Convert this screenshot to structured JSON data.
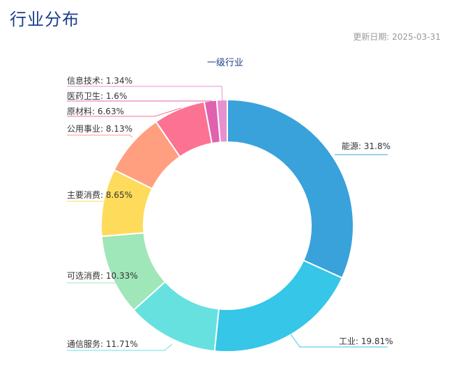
{
  "page": {
    "title": "行业分布",
    "update_label": "更新日期:",
    "update_date": "2025-03-31"
  },
  "chart_data": {
    "type": "pie",
    "variant": "donut",
    "title": "一级行业",
    "categories": [
      "能源",
      "工业",
      "通信服务",
      "可选消费",
      "主要消费",
      "公用事业",
      "原材料",
      "医药卫生",
      "信息技术"
    ],
    "values": [
      31.8,
      19.81,
      11.71,
      10.33,
      8.65,
      8.13,
      6.63,
      1.6,
      1.34
    ],
    "labels": [
      "能源: 31.8%",
      "工业: 19.81%",
      "通信服务: 11.71%",
      "可选消费: 10.33%",
      "主要消费: 8.65%",
      "公用事业: 8.13%",
      "原材料: 6.63%",
      "医药卫生: 1.6%",
      "信息技术: 1.34%"
    ],
    "colors": [
      "#39a2db",
      "#35c6e8",
      "#66e1e0",
      "#9fe6b8",
      "#ffdb5c",
      "#ff9f7f",
      "#fb7293",
      "#e062ae",
      "#e690d1"
    ],
    "unit": "%",
    "legend": "none"
  }
}
